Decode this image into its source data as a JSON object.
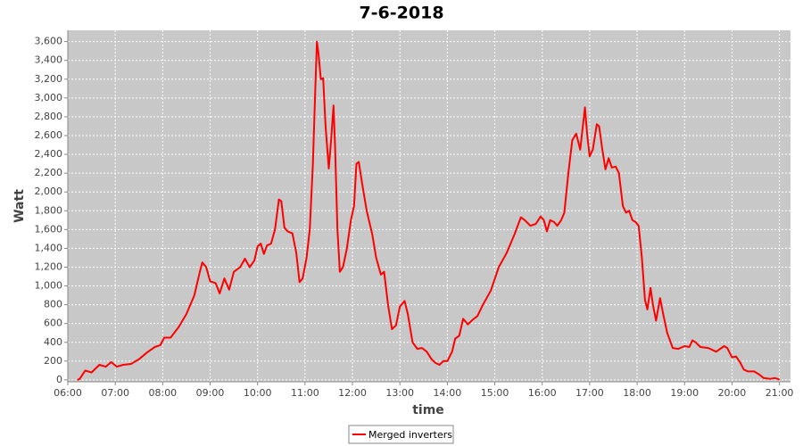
{
  "chart_data": {
    "type": "line",
    "title": "7-6-2018",
    "x_label": "time",
    "y_label": "Watt",
    "x": [
      "06:12",
      "06:15",
      "06:22",
      "06:30",
      "06:40",
      "06:48",
      "06:55",
      "07:02",
      "07:10",
      "07:20",
      "07:30",
      "07:40",
      "07:50",
      "07:57",
      "08:02",
      "08:10",
      "08:20",
      "08:30",
      "08:40",
      "08:47",
      "08:50",
      "08:55",
      "09:00",
      "09:07",
      "09:12",
      "09:18",
      "09:24",
      "09:30",
      "09:38",
      "09:44",
      "09:50",
      "09:56",
      "10:00",
      "10:04",
      "10:08",
      "10:12",
      "10:17",
      "10:22",
      "10:27",
      "10:30",
      "10:34",
      "10:38",
      "10:44",
      "10:49",
      "10:53",
      "10:57",
      "11:02",
      "11:06",
      "11:10",
      "11:13",
      "11:15",
      "11:17",
      "11:20",
      "11:23",
      "11:26",
      "11:30",
      "11:33",
      "11:36",
      "11:38",
      "11:41",
      "11:44",
      "11:48",
      "11:53",
      "11:58",
      "12:02",
      "12:05",
      "12:08",
      "12:12",
      "12:18",
      "12:25",
      "12:30",
      "12:36",
      "12:40",
      "12:45",
      "12:50",
      "12:55",
      "13:00",
      "13:06",
      "13:10",
      "13:16",
      "13:22",
      "13:28",
      "13:34",
      "13:40",
      "13:45",
      "13:50",
      "13:55",
      "14:00",
      "14:06",
      "14:10",
      "14:15",
      "14:20",
      "14:26",
      "14:32",
      "14:38",
      "14:45",
      "14:55",
      "15:05",
      "15:15",
      "15:25",
      "15:33",
      "15:38",
      "15:45",
      "15:52",
      "15:58",
      "16:02",
      "16:06",
      "16:10",
      "16:15",
      "16:19",
      "16:24",
      "16:28",
      "16:33",
      "16:38",
      "16:43",
      "16:48",
      "16:54",
      "16:57",
      "17:00",
      "17:04",
      "17:09",
      "17:12",
      "17:16",
      "17:20",
      "17:24",
      "17:28",
      "17:33",
      "17:37",
      "17:42",
      "17:46",
      "17:50",
      "17:54",
      "17:58",
      "18:02",
      "18:06",
      "18:10",
      "18:13",
      "18:17",
      "18:20",
      "18:24",
      "18:29",
      "18:33",
      "18:38",
      "18:45",
      "18:52",
      "19:00",
      "19:06",
      "19:10",
      "19:14",
      "19:20",
      "19:30",
      "19:40",
      "19:50",
      "19:54",
      "20:00",
      "20:05",
      "20:10",
      "20:15",
      "20:20",
      "20:28",
      "20:34",
      "20:40",
      "20:48",
      "20:54",
      "20:58",
      "21:00"
    ],
    "series": [
      {
        "name": "Merged inverters",
        "color": "#ff0000",
        "values": [
          0,
          10,
          100,
          80,
          160,
          140,
          190,
          140,
          160,
          170,
          220,
          290,
          350,
          370,
          450,
          450,
          560,
          700,
          900,
          1150,
          1250,
          1200,
          1050,
          1030,
          920,
          1080,
          960,
          1150,
          1200,
          1290,
          1200,
          1270,
          1420,
          1450,
          1340,
          1430,
          1450,
          1600,
          1920,
          1900,
          1620,
          1580,
          1560,
          1350,
          1040,
          1080,
          1300,
          1600,
          2300,
          3100,
          3600,
          3480,
          3200,
          3210,
          2700,
          2250,
          2550,
          2920,
          2500,
          1600,
          1150,
          1200,
          1400,
          1700,
          1850,
          2300,
          2320,
          2100,
          1800,
          1550,
          1300,
          1120,
          1150,
          800,
          540,
          580,
          780,
          840,
          700,
          400,
          330,
          340,
          300,
          220,
          180,
          160,
          200,
          200,
          300,
          440,
          470,
          650,
          590,
          640,
          680,
          800,
          950,
          1200,
          1350,
          1550,
          1730,
          1700,
          1640,
          1660,
          1740,
          1700,
          1580,
          1700,
          1680,
          1640,
          1700,
          1780,
          2200,
          2550,
          2620,
          2450,
          2900,
          2600,
          2380,
          2450,
          2720,
          2700,
          2450,
          2240,
          2360,
          2260,
          2270,
          2200,
          1850,
          1780,
          1800,
          1700,
          1680,
          1640,
          1300,
          850,
          750,
          980,
          800,
          630,
          870,
          700,
          500,
          340,
          330,
          360,
          350,
          420,
          400,
          350,
          340,
          300,
          360,
          340,
          240,
          250,
          190,
          110,
          90,
          90,
          60,
          20,
          10,
          20,
          10,
          0
        ]
      }
    ],
    "xlim": [
      "06:00",
      "21:14"
    ],
    "xticks": [
      "06:00",
      "07:00",
      "08:00",
      "09:00",
      "10:00",
      "11:00",
      "12:00",
      "13:00",
      "14:00",
      "15:00",
      "16:00",
      "17:00",
      "18:00",
      "19:00",
      "20:00",
      "21:00"
    ],
    "ylim": [
      -20,
      3720
    ],
    "yticks": [
      0,
      200,
      400,
      600,
      800,
      {
        "value": 1000,
        "label": "1,000"
      },
      {
        "value": 1200,
        "label": "1,200"
      },
      {
        "value": 1400,
        "label": "1,400"
      },
      {
        "value": 1600,
        "label": "1,600"
      },
      {
        "value": 1800,
        "label": "1,800"
      },
      {
        "value": 2000,
        "label": "2,000"
      },
      {
        "value": 2200,
        "label": "2,200"
      },
      {
        "value": 2400,
        "label": "2,400"
      },
      {
        "value": 2600,
        "label": "2,600"
      },
      {
        "value": 2800,
        "label": "2,800"
      },
      {
        "value": 3000,
        "label": "3,000"
      },
      {
        "value": 3200,
        "label": "3,200"
      },
      {
        "value": 3400,
        "label": "3,400"
      },
      {
        "value": 3600,
        "label": "3,600"
      }
    ],
    "grid": true,
    "legend": "bottom"
  }
}
